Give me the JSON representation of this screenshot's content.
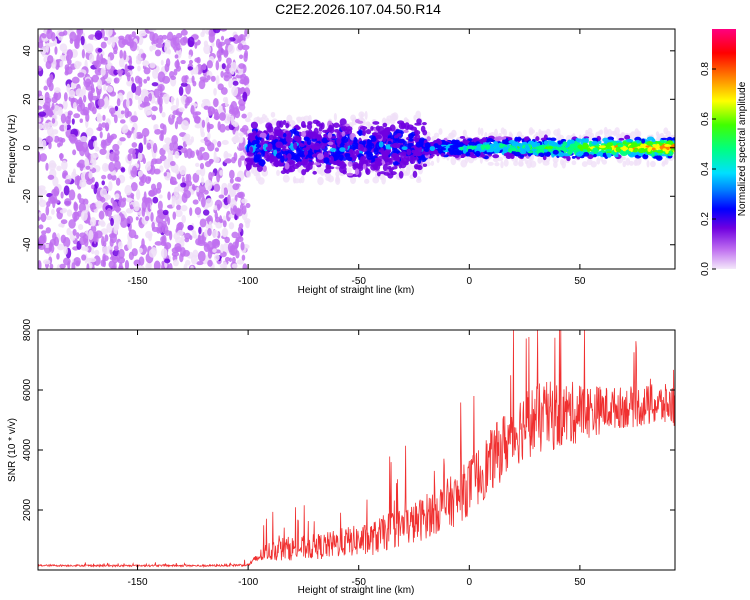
{
  "title": "C2E2.2026.107.04.50.R14",
  "colors": {
    "snr_line": "#f03030",
    "frame": "#000000",
    "background": "#ffffff"
  },
  "chart_data": [
    {
      "type": "heatmap",
      "title": "C2E2.2026.107.04.50.R14",
      "xlabel": "Height of straight line (km)",
      "ylabel": "Frequency (Hz)",
      "xlim": [
        -195,
        93
      ],
      "ylim": [
        -50,
        49
      ],
      "xticks": [
        -150,
        -100,
        -50,
        0,
        50
      ],
      "xtick_labels": [
        "-150",
        "-100",
        "-50",
        "0",
        "50"
      ],
      "yticks": [
        -40,
        -20,
        0,
        20,
        40
      ],
      "ytick_labels": [
        "-40",
        "-20",
        "0",
        "20",
        "40"
      ],
      "colorbar": {
        "label": "Normalized spectral amplitude",
        "range": [
          0,
          0.96
        ],
        "ticks": [
          0.0,
          0.2,
          0.4,
          0.6,
          0.8
        ],
        "tick_labels": [
          "0.0",
          "0.2",
          "0.4",
          "0.6",
          "0.8"
        ],
        "colormap": [
          "#f0e0f8",
          "#c070f0",
          "#7000e0",
          "#0000ff",
          "#00c0ff",
          "#00ff80",
          "#40ff00",
          "#ffff00",
          "#ff8000",
          "#ff0000",
          "#ff0080"
        ]
      },
      "regions": [
        {
          "x_range": [
            -195,
            -100
          ],
          "freq_range": [
            -50,
            49
          ],
          "amplitude": "0.05-0.2",
          "pattern": "scattered noise"
        },
        {
          "x_range": [
            -100,
            -20
          ],
          "freq_range": [
            -15,
            12
          ],
          "amplitude": "0.2-0.45",
          "pattern": "broad band around 0 Hz"
        },
        {
          "x_range": [
            -20,
            93
          ],
          "freq_range": [
            -5,
            5
          ],
          "amplitude": "0.3-0.96",
          "pattern": "narrow band around 0 Hz"
        }
      ]
    },
    {
      "type": "line",
      "xlabel": "Height of straight line (km)",
      "ylabel": "SNR (10 * v/v)",
      "xlim": [
        -195,
        93
      ],
      "ylim": [
        0,
        8000
      ],
      "xticks": [
        -150,
        -100,
        -50,
        0,
        50
      ],
      "xtick_labels": [
        "-150",
        "-100",
        "-50",
        "0",
        "50"
      ],
      "yticks": [
        2000,
        4000,
        6000,
        8000
      ],
      "ytick_labels": [
        "2000",
        "4000",
        "6000",
        "8000"
      ],
      "series": [
        {
          "name": "SNR",
          "color": "#f03030",
          "x": [
            -195,
            -180,
            -160,
            -140,
            -120,
            -100,
            -92,
            -85,
            -75,
            -65,
            -55,
            -45,
            -35,
            -25,
            -15,
            -5,
            5,
            15,
            25,
            35,
            45,
            55,
            65,
            75,
            85,
            93
          ],
          "y": [
            150,
            150,
            140,
            150,
            140,
            170,
            600,
            700,
            750,
            800,
            950,
            1000,
            1350,
            1550,
            2000,
            2400,
            3200,
            4100,
            4900,
            5100,
            5200,
            5300,
            5400,
            5450,
            5500,
            5500
          ],
          "noise_amplitude": [
            30,
            30,
            30,
            30,
            30,
            40,
            300,
            400,
            400,
            450,
            500,
            550,
            650,
            700,
            800,
            900,
            1000,
            1100,
            1200,
            1200,
            1100,
            900,
            700,
            700,
            700,
            700
          ]
        }
      ]
    }
  ]
}
